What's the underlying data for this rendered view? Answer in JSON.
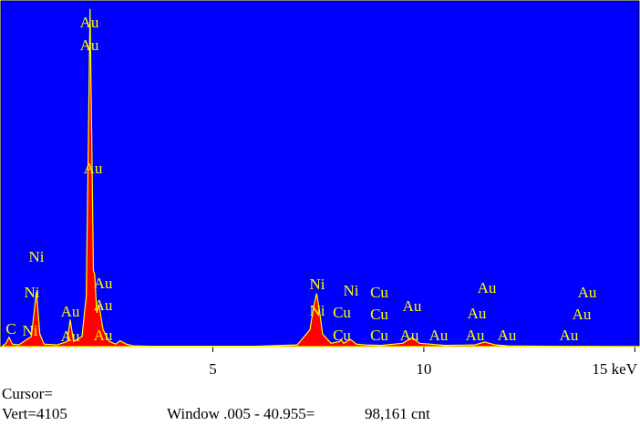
{
  "chart_data": {
    "type": "spectrum",
    "x": [
      0,
      0.1,
      0.17,
      0.25,
      0.4,
      0.7,
      0.82,
      0.9,
      1.0,
      1.3,
      1.55,
      1.62,
      1.7,
      1.9,
      2.0,
      2.05,
      2.09,
      2.13,
      2.17,
      2.2,
      2.25,
      2.3,
      2.4,
      2.45,
      2.55,
      2.7,
      2.8,
      2.95,
      3.1,
      3.5,
      4,
      5,
      6,
      7,
      7.3,
      7.4,
      7.46,
      7.52,
      7.6,
      7.8,
      8.0,
      8.04,
      8.1,
      8.26,
      8.4,
      8.6,
      9.0,
      9.5,
      9.72,
      9.9,
      10.5,
      11.2,
      11.44,
      11.7,
      12,
      13,
      14,
      15,
      15.1
    ],
    "values": [
      0,
      40,
      110,
      30,
      20,
      120,
      650,
      150,
      30,
      20,
      60,
      320,
      60,
      120,
      600,
      2400,
      4000,
      2500,
      900,
      860,
      400,
      500,
      200,
      150,
      60,
      30,
      70,
      30,
      10,
      5,
      5,
      5,
      5,
      20,
      200,
      500,
      630,
      450,
      150,
      40,
      60,
      80,
      40,
      86,
      30,
      20,
      15,
      40,
      108,
      40,
      15,
      20,
      55,
      20,
      8,
      5,
      3,
      2,
      2
    ],
    "color": "#ff0000",
    "outline_color": "#ffff00",
    "background": "#0000ff",
    "xlim": [
      0,
      15.1
    ],
    "ylim": [
      0,
      4105
    ],
    "xticks": [
      5,
      10,
      {
        "value": 15,
        "label": "15 keV"
      }
    ],
    "annotations": [
      "Au",
      "Au",
      "Au",
      "Ni",
      "Au",
      "Ni",
      "Au",
      "Au",
      "C",
      "Ni",
      "Au",
      "Au",
      "Ni",
      "Ni",
      "Cu",
      "Ni",
      "Cu",
      "Cu",
      "Au",
      "Au",
      "Au",
      "Au",
      "Au",
      "Cu",
      "Cu",
      "Au",
      "Au",
      "Au",
      "Au",
      "Au"
    ]
  },
  "status": {
    "cursor": "Cursor=",
    "vert": "Vert=4105",
    "window": "Window .005 - 40.955=",
    "count": "98,161 cnt"
  }
}
